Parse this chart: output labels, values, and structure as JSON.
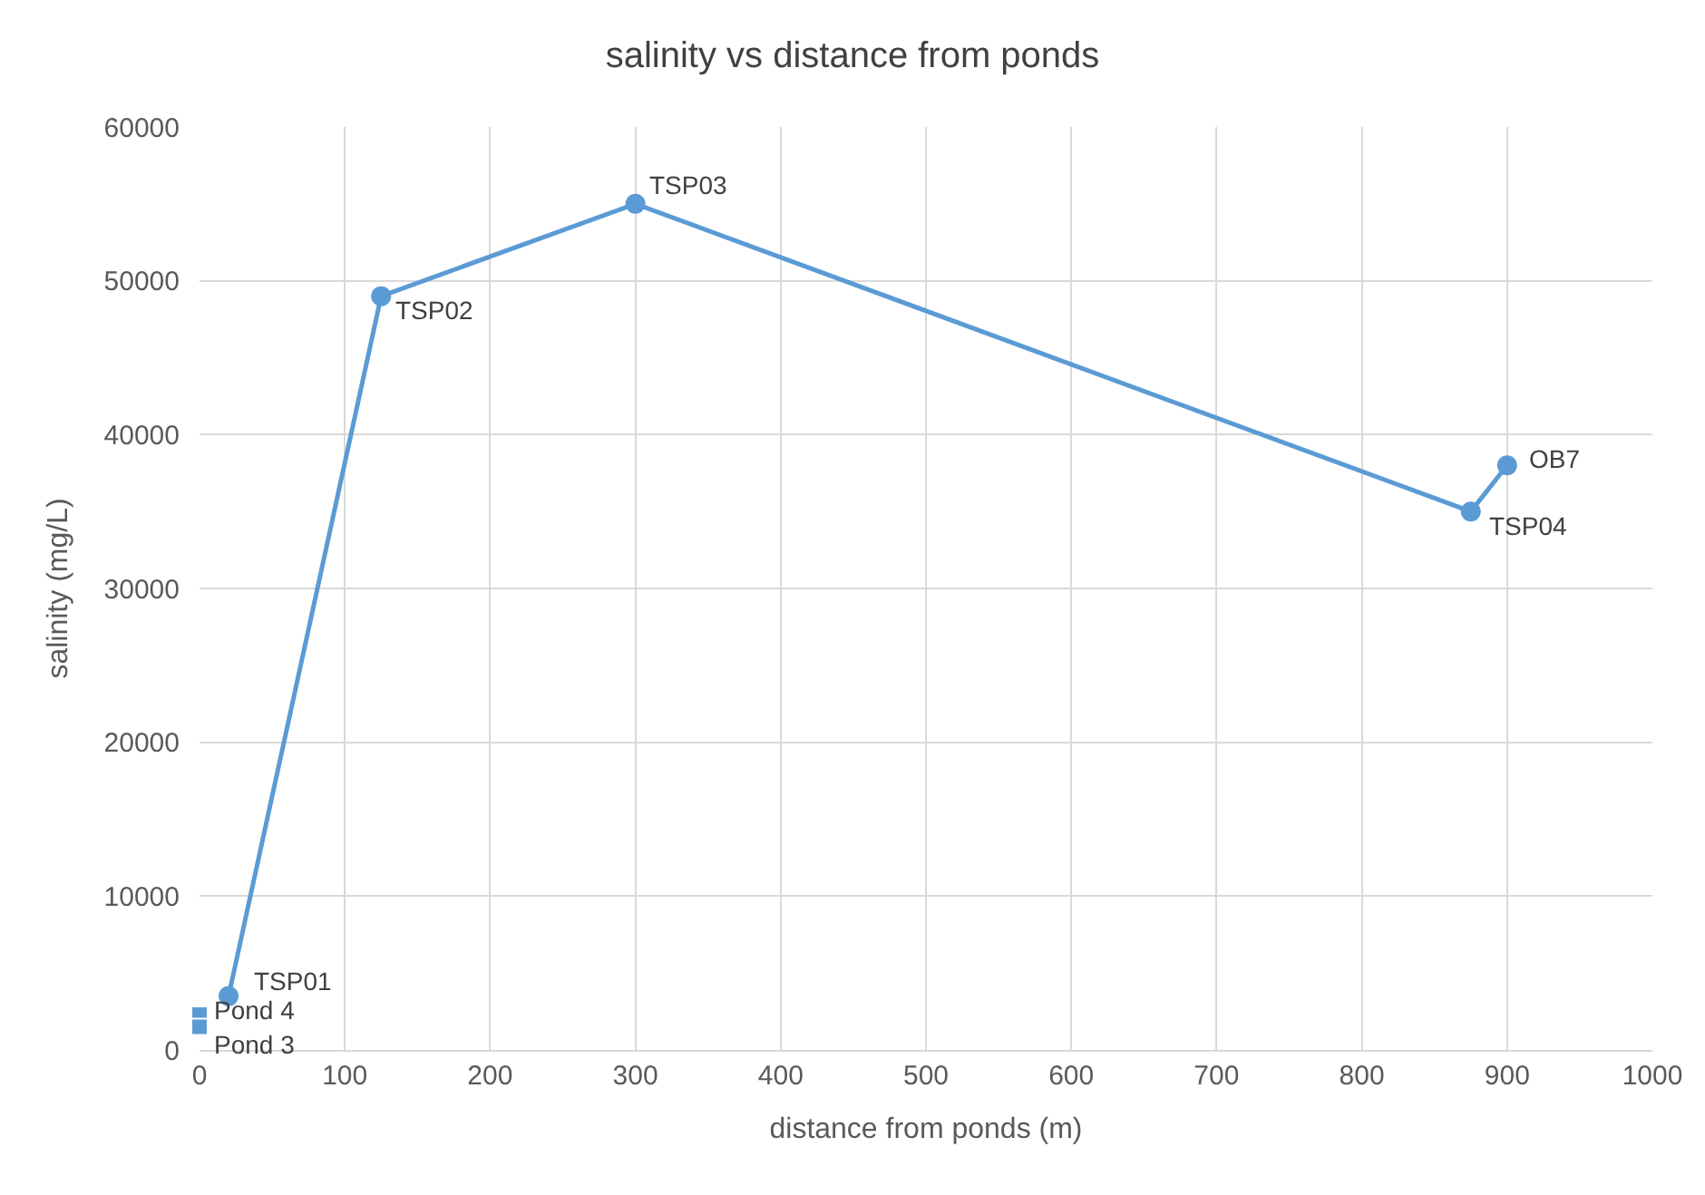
{
  "chart_data": {
    "type": "line",
    "title": "salinity vs distance from ponds",
    "xlabel": "distance from ponds (m)",
    "ylabel": "salinity (mg/L)",
    "series": [
      {
        "color": "#5b9bd5",
        "marker": "circle",
        "x": [
          20,
          125,
          300,
          875,
          900
        ],
        "values": [
          3500,
          49000,
          55000,
          35000,
          38000
        ]
      },
      {
        "type": "scatter",
        "color": "#5b9bd5",
        "marker": "square",
        "x": [
          0,
          0
        ],
        "values": [
          2300,
          1500
        ]
      }
    ],
    "annotations": [
      {
        "text": "TSP01",
        "x": 20,
        "y": 3500
      },
      {
        "text": "TSP02",
        "x": 125,
        "y": 49000
      },
      {
        "text": "TSP03",
        "x": 300,
        "y": 55000
      },
      {
        "text": "TSP04",
        "x": 875,
        "y": 35000
      },
      {
        "text": "OB7",
        "x": 900,
        "y": 38000
      },
      {
        "text": "Pond 4",
        "x": 0,
        "y": 2300
      },
      {
        "text": "Pond 3",
        "x": 0,
        "y": 1500
      }
    ],
    "xlim": [
      0,
      1000
    ],
    "xticks": [
      0,
      100,
      200,
      300,
      400,
      500,
      600,
      700,
      800,
      900,
      1000
    ],
    "ylim": [
      0,
      60000
    ],
    "yticks": [
      0,
      10000,
      20000,
      30000,
      40000,
      50000,
      60000
    ],
    "grid": true
  }
}
